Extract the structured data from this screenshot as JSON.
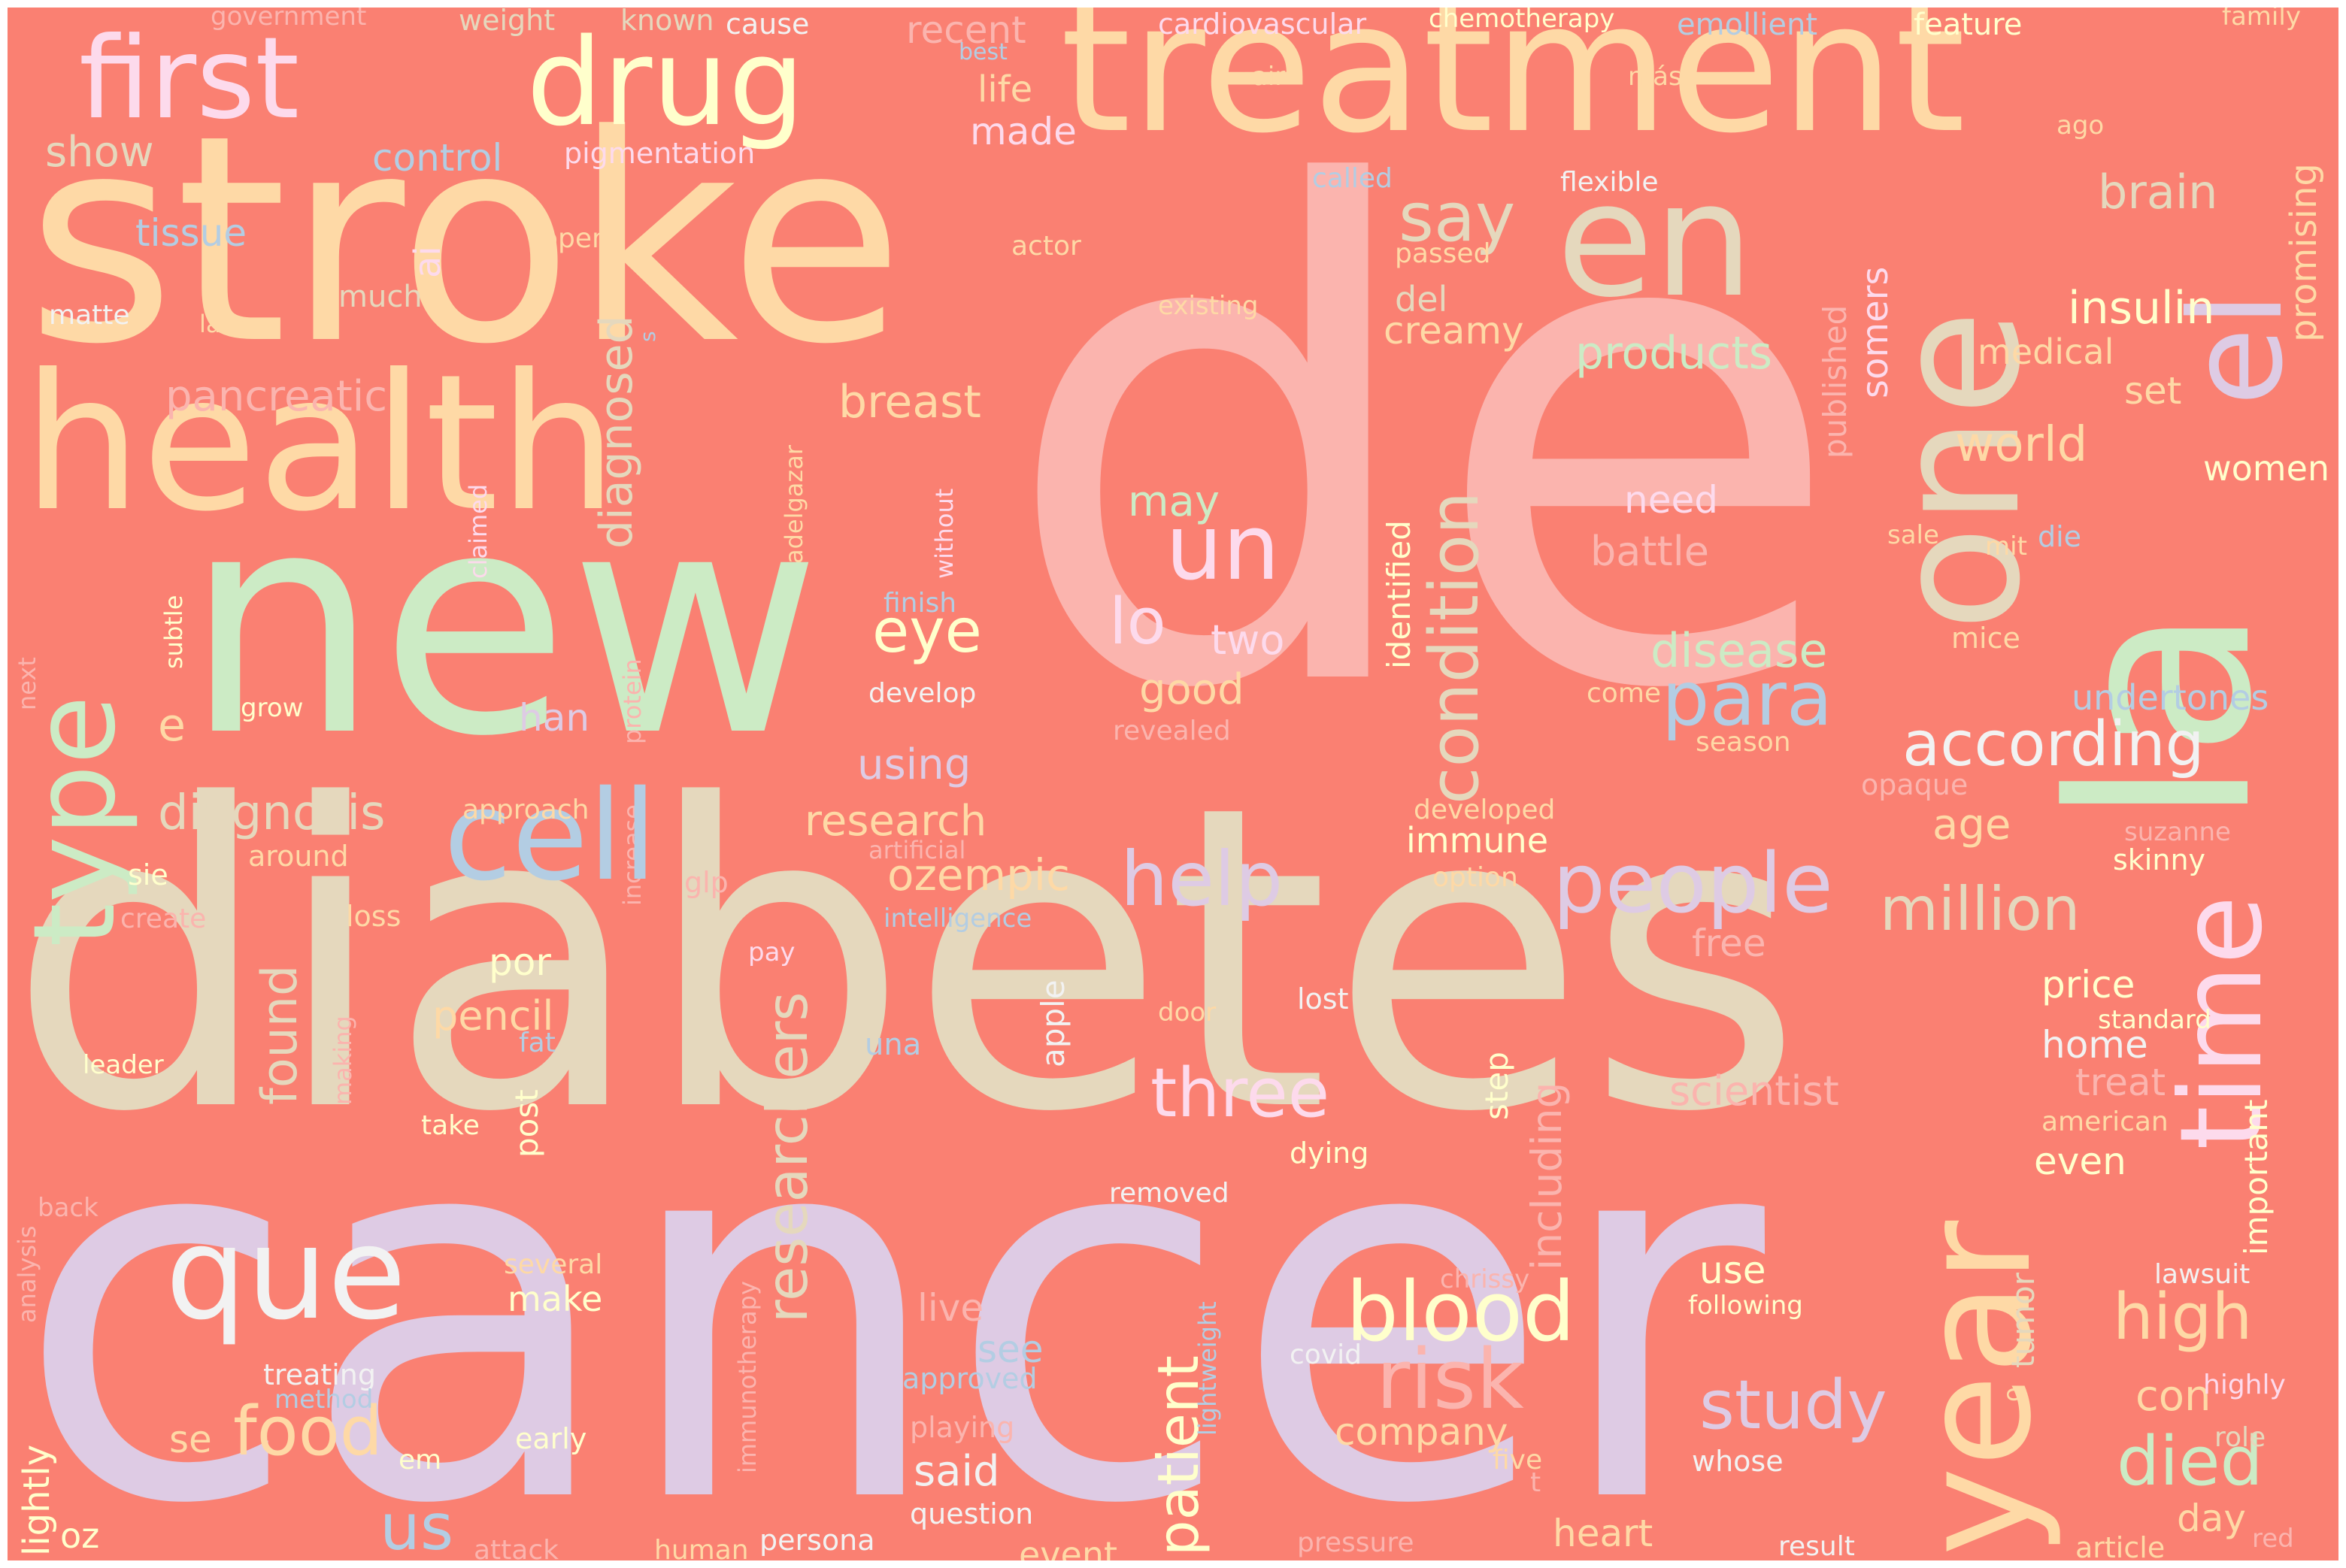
{
  "background": "#FA8072",
  "palette": [
    "#FBB4AE",
    "#B3CDE3",
    "#CCEBC5",
    "#DECBE4",
    "#FED9A6",
    "#FFFFCC",
    "#E5D8BD",
    "#FDDAEC",
    "#F2F2F2"
  ],
  "words": {
    "de": "de",
    "cancer": "cancer",
    "diabetes": "diabetes",
    "stroke": "stroke",
    "new": "new",
    "treatment": "treatment",
    "health": "health",
    "la": "la",
    "en": "en",
    "el": "el",
    "drug": "drug",
    "first": "first",
    "year": "year",
    "time": "time",
    "type": "type",
    "one": "one",
    "cell": "cell",
    "que": "que",
    "condition": "condition",
    "researchers": "researchers",
    "people": "people",
    "blood": "blood",
    "according": "according",
    "patient": "patient",
    "un": "un",
    "para": "para",
    "risk": "risk",
    "study": "study",
    "help": "help",
    "three": "three",
    "died": "died",
    "million": "million",
    "high": "high",
    "diagnosed": "diagnosed",
    "food": "food",
    "found": "found",
    "disease": "disease",
    "say": "say",
    "brain": "brain",
    "us": "us",
    "eye": "eye",
    "lo": "lo",
    "ozempic": "ozempic",
    "insulin": "insulin",
    "products": "products",
    "research": "research",
    "diagnosis": "diagnosis",
    "breast": "breast",
    "world": "world",
    "show": "show",
    "tissue": "tissue",
    "control": "control",
    "pigmentation": "pigmentation",
    "made": "made",
    "life": "life",
    "recent": "recent",
    "pancreatic": "pancreatic",
    "creamy": "creamy",
    "may": "may",
    "need": "need",
    "battle": "battle",
    "two": "two",
    "good": "good",
    "undertones": "undertones",
    "age": "age",
    "using": "using",
    "immune": "immune",
    "including": "including",
    "published": "published",
    "somers": "somers",
    "medical": "medical",
    "set": "set",
    "promising": "promising",
    "women": "women",
    "identified": "identified",
    "scientist": "scientist",
    "pencil": "pencil",
    "post": "post",
    "por": "por",
    "home": "home",
    "price": "price",
    "treat": "treat",
    "even": "even",
    "important": "important",
    "con": "con",
    "day": "day",
    "see": "see",
    "live": "live",
    "make": "make",
    "company": "company",
    "use": "use",
    "said": "said",
    "heart": "heart",
    "event": "event",
    "se": "se",
    "han": "han",
    "step": "step",
    "apple": "apple",
    "tumor": "tumor",
    "ai": "ai",
    "del": "del",
    "free": "free",
    "e": "e",
    "lightly": "lightly",
    "oz": "oz",
    "much": "much",
    "matte": "matte",
    "government": "government",
    "weight": "weight",
    "known": "known",
    "cause": "cause",
    "cardiovascular": "cardiovascular",
    "chemotherapy": "chemotherapy",
    "emollient": "emollient",
    "feature": "feature",
    "family": "family",
    "best": "best",
    "air": "air",
    "mas": "más",
    "ago": "ago",
    "called": "called",
    "flexible": "flexible",
    "open": "open",
    "actor": "actor",
    "passed": "passed",
    "existing": "existing",
    "late": "late",
    "s": "s",
    "claimed": "claimed",
    "adelgazar": "adelgazar",
    "without": "without",
    "sale": "sale",
    "mit": "mit",
    "die": "die",
    "mice": "mice",
    "finish": "finish",
    "subtle": "subtle",
    "protein": "protein",
    "next": "next",
    "grow": "grow",
    "develop": "develop",
    "revealed": "revealed",
    "come": "come",
    "season": "season",
    "opaque": "opaque",
    "approach": "approach",
    "developed": "developed",
    "suzanne": "suzanne",
    "skinny": "skinny",
    "around": "around",
    "artificial": "artificial",
    "sie": "sie",
    "glp": "glp",
    "increase": "increase",
    "option": "option",
    "create": "create",
    "loss": "loss",
    "intelligence": "intelligence",
    "pay": "pay",
    "door": "door",
    "lost": "lost",
    "standard": "standard",
    "making": "making",
    "fat": "fat",
    "una": "una",
    "leader": "leader",
    "take": "take",
    "dying": "dying",
    "american": "american",
    "back": "back",
    "analysis": "analysis",
    "removed": "removed",
    "several": "several",
    "chrissy": "chrissy",
    "lawsuit": "lawsuit",
    "following": "following",
    "treating": "treating",
    "covid": "covid",
    "method": "method",
    "approved": "approved",
    "highly": "highly",
    "o": "o",
    "role": "role",
    "lightweight": "lightweight",
    "playing": "playing",
    "early": "early",
    "em": "em",
    "five": "five",
    "whose": "whose",
    "t": "t",
    "immunotherapy": "immunotherapy",
    "question": "question",
    "attack": "attack",
    "human": "human",
    "persona": "persona",
    "pressure": "pressure",
    "result": "result",
    "article": "article",
    "red": "red"
  }
}
